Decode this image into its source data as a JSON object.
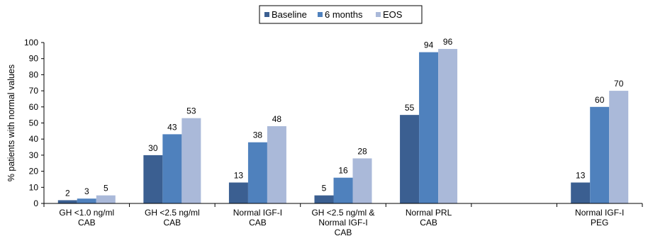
{
  "chart_data": {
    "type": "bar",
    "ylabel": "% patients with normal values",
    "xlabel": "",
    "ylim": [
      0,
      100
    ],
    "yticks": [
      0,
      10,
      20,
      30,
      40,
      50,
      60,
      70,
      80,
      90,
      100
    ],
    "grid": false,
    "legend_position": "top-center",
    "categories": [
      [
        "GH <1.0 ng/ml",
        "CAB"
      ],
      [
        "GH <2.5 ng/ml",
        "CAB"
      ],
      [
        "Normal IGF-I",
        "CAB"
      ],
      [
        "GH <2.5 ng/ml &",
        "Normal IGF-I",
        "CAB"
      ],
      [
        "Normal PRL",
        "CAB"
      ],
      [],
      [
        "Normal IGF-I",
        "PEG"
      ]
    ],
    "series": [
      {
        "name": "Baseline",
        "color": "#3b5f91",
        "values": [
          2,
          30,
          13,
          5,
          55,
          null,
          13
        ]
      },
      {
        "name": "6 months",
        "color": "#4f81bd",
        "values": [
          3,
          43,
          38,
          16,
          94,
          null,
          60
        ]
      },
      {
        "name": "EOS",
        "color": "#aab9d9",
        "values": [
          5,
          53,
          48,
          28,
          96,
          null,
          70
        ]
      }
    ]
  }
}
